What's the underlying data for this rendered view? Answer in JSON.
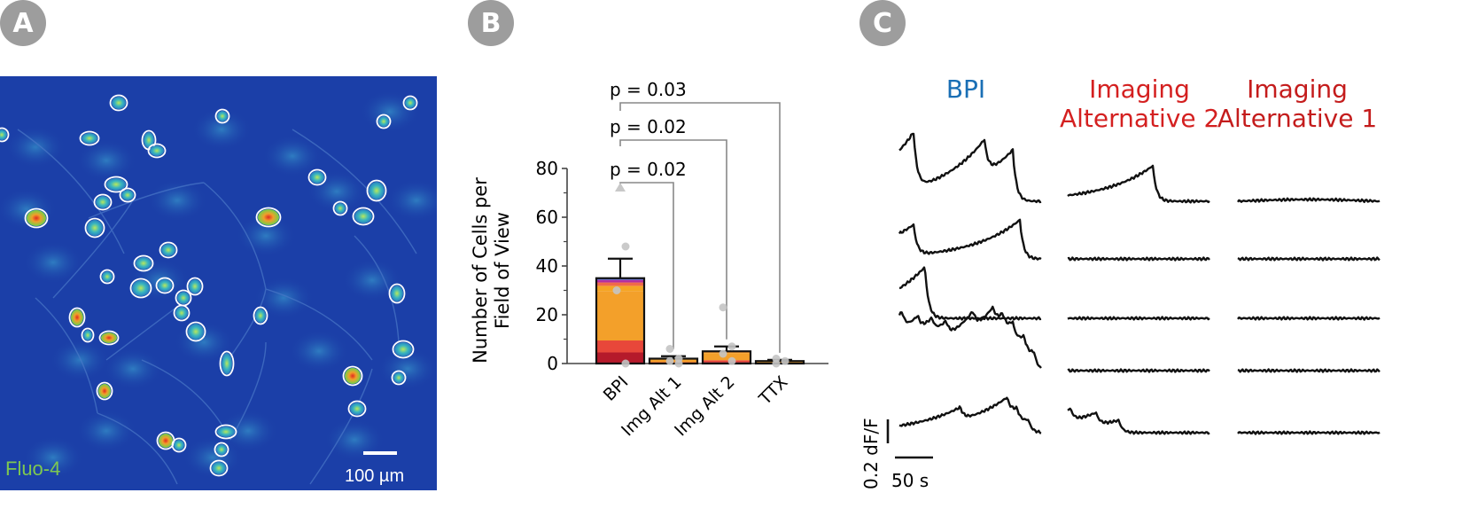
{
  "panels": {
    "a": {
      "label": "A"
    },
    "b": {
      "label": "B"
    },
    "c": {
      "label": "C"
    }
  },
  "panel_a": {
    "stain_label": "Fluo-4",
    "scalebar_label": "100 µm",
    "colors": {
      "background": "#1b3fa8",
      "cell": "#2fa6c9",
      "hot": "#e5352b",
      "stain_text": "#7ec850"
    }
  },
  "chart_data": [
    {
      "type": "bar",
      "categories": [
        "BPI",
        "Img Alt 1",
        "Img Alt 2",
        "TTX"
      ],
      "values": [
        35,
        2,
        5,
        1
      ],
      "errors": [
        8,
        1,
        2,
        0.5
      ],
      "ylabel": "Number of Cells per Field of View",
      "ylim": [
        0,
        80
      ],
      "yticks": [
        0,
        20,
        40,
        60,
        80
      ],
      "annotations": [
        {
          "from": "BPI",
          "to": "Img Alt 1",
          "text": "p = 0.02"
        },
        {
          "from": "BPI",
          "to": "Img Alt 2",
          "text": "p = 0.02"
        },
        {
          "from": "BPI",
          "to": "TTX",
          "text": "p = 0.03"
        }
      ],
      "individual_points": {
        "BPI": [
          72,
          48,
          30,
          0
        ],
        "Img Alt 1": [
          6,
          2,
          1,
          0
        ],
        "Img Alt 2": [
          23,
          7,
          4,
          1
        ],
        "TTX": [
          2,
          1,
          0
        ]
      },
      "stack_colors": [
        "#b51a2b",
        "#e8473a",
        "#f3a02a",
        "#f5a524",
        "#f06a4a",
        "#b32ea0",
        "#4a6fd0"
      ]
    },
    {
      "type": "line",
      "columns": [
        "BPI",
        "Imaging Alternative 2",
        "Imaging Alternative 1"
      ],
      "column_colors": [
        "#1a6fb5",
        "#d42020",
        "#c41c1c"
      ],
      "rows": 5,
      "scalebar_y": "0.2 dF/F",
      "scalebar_x": "50 s"
    }
  ]
}
